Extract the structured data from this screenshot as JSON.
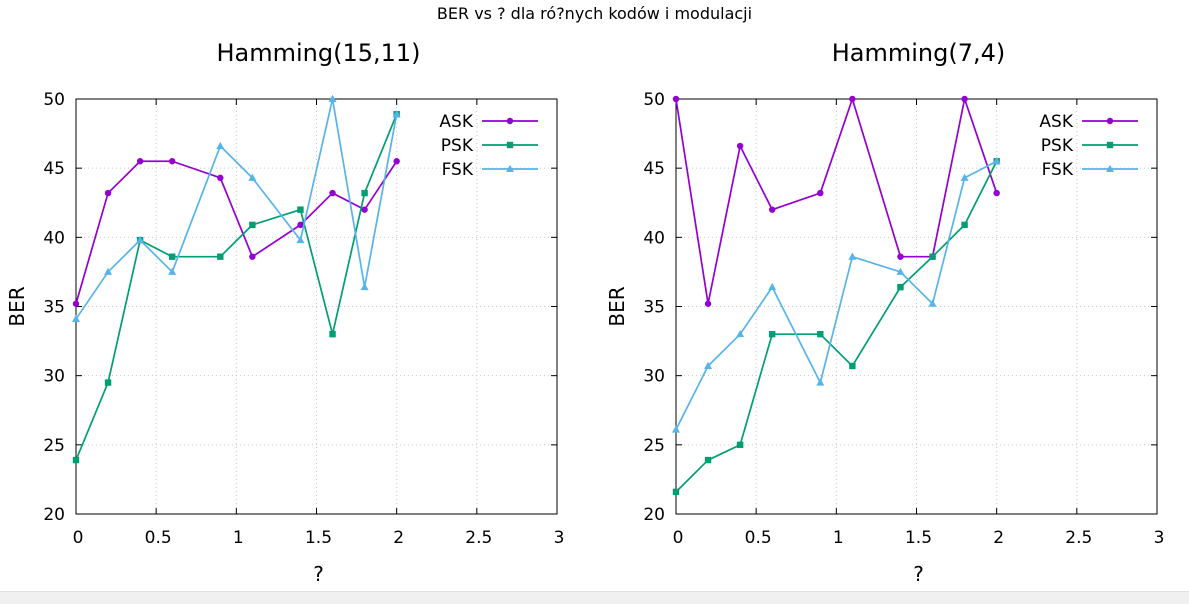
{
  "figure": {
    "title": "BER vs ? dla ró?nych kodów i modulacji"
  },
  "chart_data": [
    {
      "type": "line",
      "title": "Hamming(15,11)",
      "xlabel": "?",
      "ylabel": "BER",
      "xlim": [
        0,
        3
      ],
      "ylim": [
        20,
        50
      ],
      "xticks": [
        "0",
        "0.5",
        "1",
        "1.5",
        "2",
        "2.5",
        "3"
      ],
      "yticks": [
        "20",
        "25",
        "30",
        "35",
        "40",
        "45",
        "50"
      ],
      "grid": true,
      "legend": "top-right",
      "x": [
        0,
        0.2,
        0.4,
        0.6,
        0.9,
        1.1,
        1.4,
        1.6,
        1.8,
        2.0
      ],
      "series": [
        {
          "name": "ASK",
          "color": "#9400d3",
          "marker": "circle",
          "values": [
            35.2,
            43.2,
            45.5,
            45.5,
            44.3,
            38.6,
            40.9,
            43.2,
            42.0,
            45.5
          ]
        },
        {
          "name": "PSK",
          "color": "#009e73",
          "marker": "square",
          "values": [
            23.9,
            29.5,
            39.8,
            38.6,
            38.6,
            40.9,
            42.0,
            33.0,
            43.2,
            48.9
          ]
        },
        {
          "name": "FSK",
          "color": "#56b4e9",
          "marker": "triangle",
          "values": [
            34.1,
            37.5,
            39.8,
            37.5,
            46.6,
            44.3,
            39.8,
            50.0,
            36.4,
            48.9
          ]
        }
      ]
    },
    {
      "type": "line",
      "title": "Hamming(7,4)",
      "xlabel": "?",
      "ylabel": "BER",
      "xlim": [
        0,
        3
      ],
      "ylim": [
        20,
        50
      ],
      "xticks": [
        "0",
        "0.5",
        "1",
        "1.5",
        "2",
        "2.5",
        "3"
      ],
      "yticks": [
        "20",
        "25",
        "30",
        "35",
        "40",
        "45",
        "50"
      ],
      "grid": true,
      "legend": "top-right",
      "x": [
        0,
        0.2,
        0.4,
        0.6,
        0.9,
        1.1,
        1.4,
        1.6,
        1.8,
        2.0
      ],
      "series": [
        {
          "name": "ASK",
          "color": "#9400d3",
          "marker": "circle",
          "values": [
            50.0,
            35.2,
            46.6,
            42.0,
            43.2,
            50.0,
            38.6,
            38.6,
            50.0,
            43.2
          ]
        },
        {
          "name": "PSK",
          "color": "#009e73",
          "marker": "square",
          "values": [
            21.6,
            23.9,
            25.0,
            33.0,
            33.0,
            30.7,
            36.4,
            38.6,
            40.9,
            45.5
          ]
        },
        {
          "name": "FSK",
          "color": "#56b4e9",
          "marker": "triangle",
          "values": [
            26.1,
            30.7,
            33.0,
            36.4,
            29.5,
            38.6,
            37.5,
            35.2,
            44.3,
            45.5
          ]
        }
      ]
    }
  ]
}
